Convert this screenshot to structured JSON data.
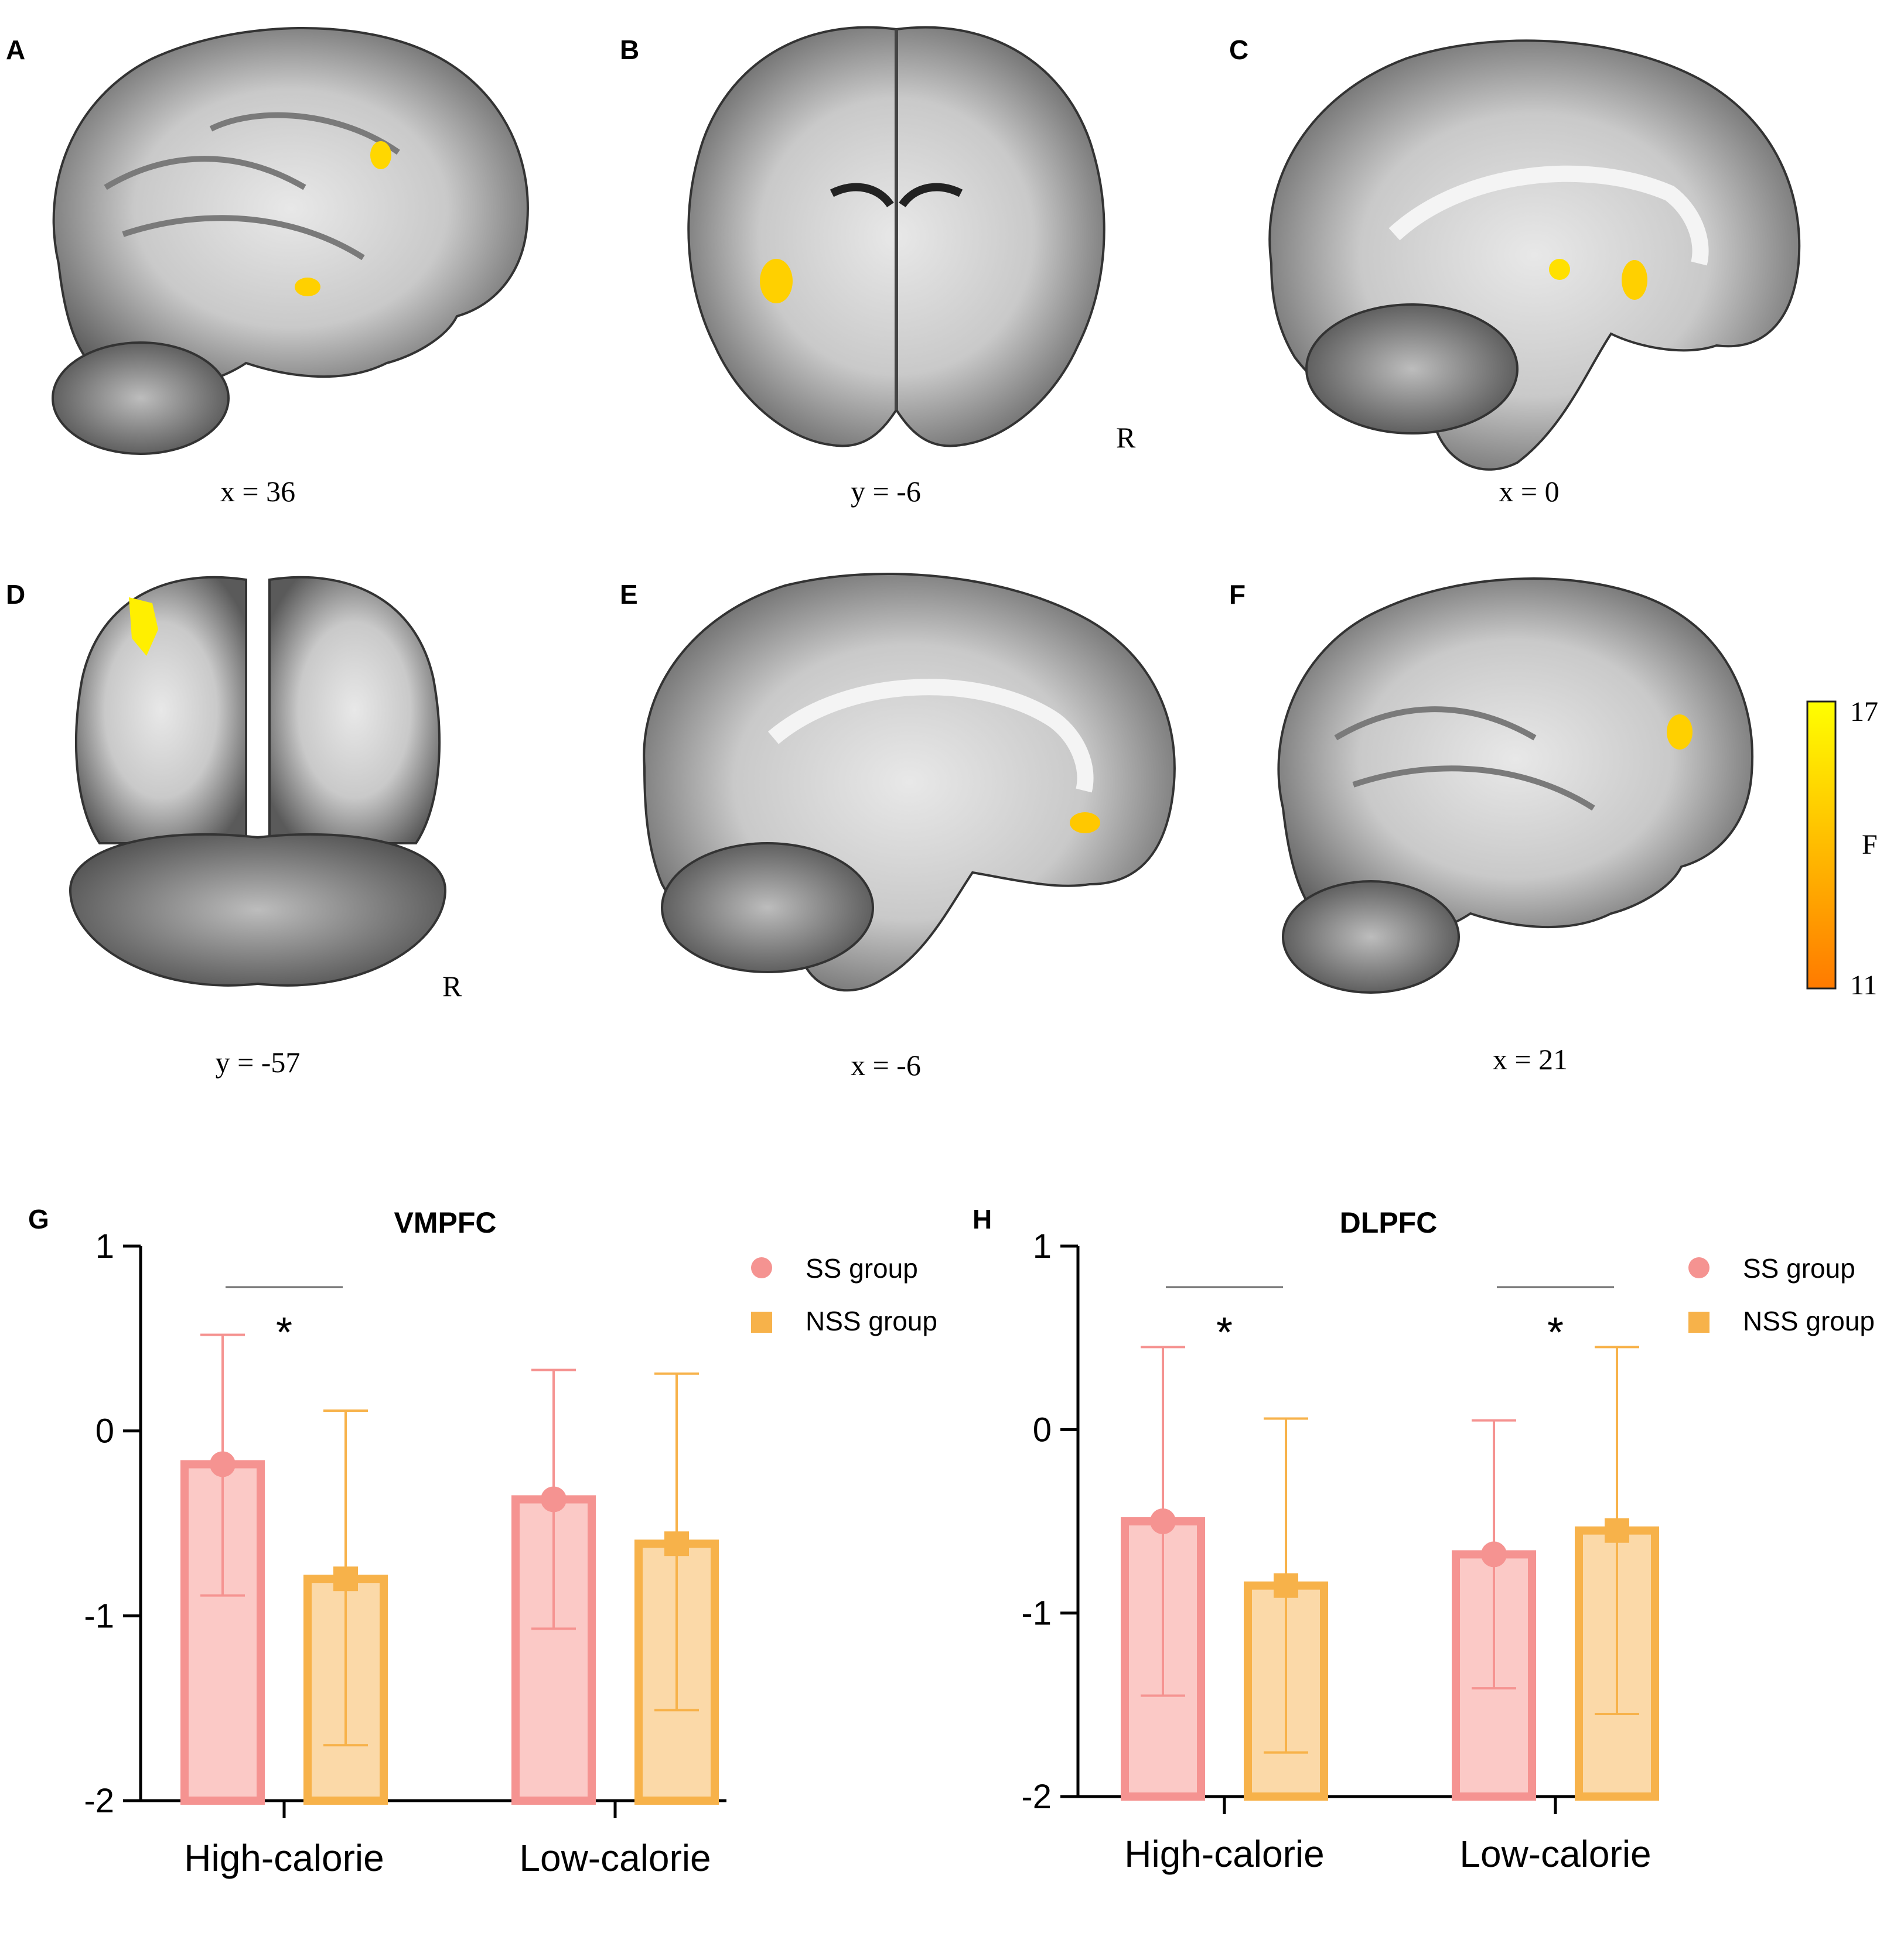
{
  "brain_panels": [
    {
      "letter": "A",
      "coord": "x = 36",
      "view": "sagittal",
      "right_mark": ""
    },
    {
      "letter": "B",
      "coord": "y = -6",
      "view": "coronal",
      "right_mark": "R"
    },
    {
      "letter": "C",
      "coord": "x = 0",
      "view": "sagittal-medial",
      "right_mark": ""
    },
    {
      "letter": "D",
      "coord": "y = -57",
      "view": "coronal-posterior",
      "right_mark": "R"
    },
    {
      "letter": "E",
      "coord": "x = -6",
      "view": "sagittal-medial",
      "right_mark": ""
    },
    {
      "letter": "F",
      "coord": "x = 21",
      "view": "sagittal",
      "right_mark": ""
    }
  ],
  "colorbar": {
    "max": "17",
    "min": "11",
    "label": "F",
    "color_low": "#ff7a00",
    "color_high": "#ffff00"
  },
  "colors": {
    "ss_fill": "#fbc9c6",
    "ss_stroke": "#f59391",
    "nss_fill": "#fbd9a8",
    "nss_stroke": "#f7b24a",
    "line": "#6f6f6f"
  },
  "legend": {
    "ss": "SS group",
    "nss": "NSS group"
  },
  "significance": "*",
  "chart_data": [
    {
      "panel": "G",
      "type": "bar",
      "title": "VMPFC",
      "categories": [
        "High-calorie",
        "Low-calorie"
      ],
      "ylim": [
        -2,
        1
      ],
      "yticks": [
        "1",
        "0",
        "-1",
        "-2"
      ],
      "series": [
        {
          "name": "SS group",
          "values": [
            -0.18,
            -0.37
          ],
          "err_upper": [
            0.52,
            0.33
          ],
          "err_lower": [
            -0.89,
            -1.07
          ]
        },
        {
          "name": "NSS group",
          "values": [
            -0.8,
            -0.61
          ],
          "err_upper": [
            0.11,
            0.31
          ],
          "err_lower": [
            -1.7,
            -1.51
          ]
        }
      ],
      "significant": [
        true,
        false
      ]
    },
    {
      "panel": "H",
      "type": "bar",
      "title": "DLPFC",
      "categories": [
        "High-calorie",
        "Low-calorie"
      ],
      "ylim": [
        -2,
        1
      ],
      "yticks": [
        "1",
        "0",
        "-1",
        "-2"
      ],
      "series": [
        {
          "name": "SS group",
          "values": [
            -0.5,
            -0.68
          ],
          "err_upper": [
            0.45,
            0.05
          ],
          "err_lower": [
            -1.45,
            -1.41
          ]
        },
        {
          "name": "NSS group",
          "values": [
            -0.85,
            -0.55
          ],
          "err_upper": [
            0.06,
            0.45
          ],
          "err_lower": [
            -1.76,
            -1.55
          ]
        }
      ],
      "significant": [
        true,
        true
      ]
    }
  ]
}
